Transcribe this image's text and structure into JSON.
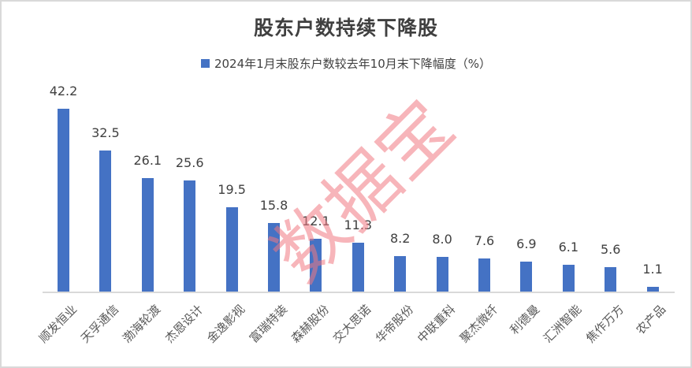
{
  "chart_data": {
    "type": "bar",
    "title": "股东户数持续下降股",
    "legend": [
      "2024年1月末股东户数较去年10月末下降幅度（%）"
    ],
    "legend_position": "top",
    "categories": [
      "顺发恒业",
      "天孚通信",
      "渤海轮渡",
      "杰恩设计",
      "金逸影视",
      "富瑞特装",
      "森赫股份",
      "交大思诺",
      "华帝股份",
      "中联重科",
      "聚杰微纤",
      "利德曼",
      "汇洲智能",
      "焦作万方",
      "农产品"
    ],
    "series": [
      {
        "name": "2024年1月末股东户数较去年10月末下降幅度（%）",
        "color": "#4472c4",
        "values": [
          42.2,
          32.5,
          26.1,
          25.6,
          19.5,
          15.8,
          12.1,
          11.3,
          8.2,
          8.0,
          7.6,
          6.9,
          6.1,
          5.6,
          1.1
        ]
      }
    ],
    "value_labels": [
      "42.2",
      "32.5",
      "26.1",
      "25.6",
      "19.5",
      "15.8",
      "12.1",
      "11.3",
      "8.2",
      "8.0",
      "7.6",
      "6.9",
      "6.1",
      "5.6",
      "1.1"
    ],
    "xlabel": "",
    "ylabel": "",
    "ylim": [
      0,
      45
    ],
    "grid": false,
    "y_axis_visible": false,
    "xtick_rotation": -45
  },
  "watermark": "数据宝",
  "colors": {
    "bar": "#4472c4",
    "text": "#404040",
    "axis": "#d9d9d9",
    "watermark": "#f08a92"
  }
}
